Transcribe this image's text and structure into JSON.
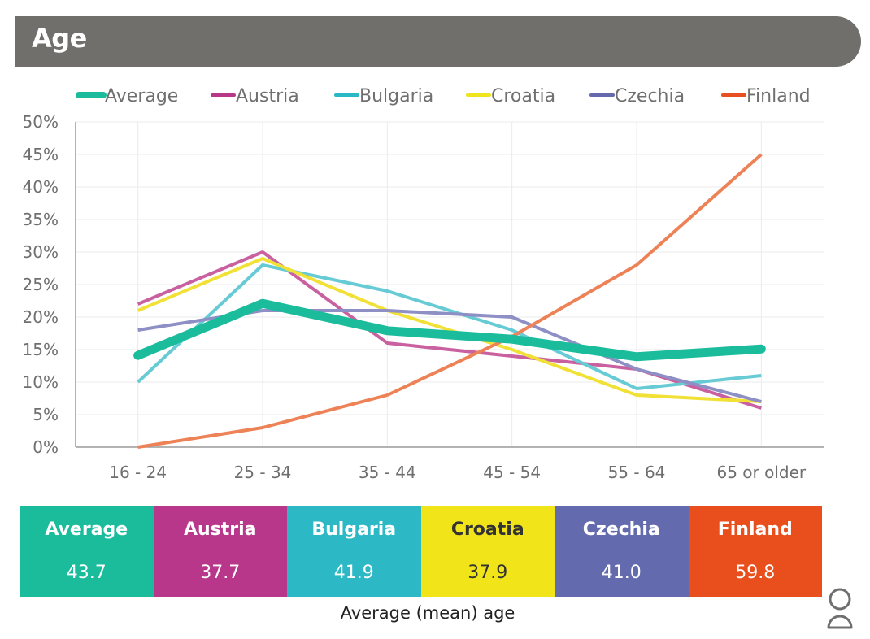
{
  "header": {
    "title": "Age"
  },
  "chart_data": {
    "type": "line",
    "title": "Age",
    "xlabel": "",
    "ylabel": "",
    "categories": [
      "16 - 24",
      "25 - 34",
      "35 - 44",
      "45 - 54",
      "55 - 64",
      "65 or older"
    ],
    "ylim": [
      0,
      50
    ],
    "yticks": [
      "0%",
      "5%",
      "10%",
      "15%",
      "20%",
      "25%",
      "30%",
      "35%",
      "40%",
      "45%",
      "50%"
    ],
    "ytick_values": [
      0,
      5,
      10,
      15,
      20,
      25,
      30,
      35,
      40,
      45,
      50
    ],
    "grid": true,
    "legend_position": "top",
    "series": [
      {
        "name": "Average",
        "color": "#1abc9c",
        "thick": true,
        "values": [
          14.1,
          22.1,
          17.9,
          16.6,
          13.9,
          15.1
        ]
      },
      {
        "name": "Austria",
        "color": "#c9609f",
        "thick": false,
        "values": [
          22,
          30,
          16,
          14,
          12,
          6
        ]
      },
      {
        "name": "Bulgaria",
        "color": "#66cbd4",
        "thick": false,
        "values": [
          10,
          28,
          24,
          18,
          9,
          11
        ]
      },
      {
        "name": "Croatia",
        "color": "#f1e137",
        "thick": false,
        "values": [
          21,
          29,
          21,
          15,
          8,
          7
        ]
      },
      {
        "name": "Czechia",
        "color": "#8e8fc4",
        "thick": false,
        "values": [
          18,
          21,
          21,
          20,
          12,
          7
        ]
      },
      {
        "name": "Finland",
        "color": "#ee8257",
        "thick": false,
        "values": [
          0,
          3,
          8,
          17,
          28,
          45
        ]
      }
    ],
    "legend_colors": [
      "#1abc9c",
      "#b9378b",
      "#2ab8c6",
      "#f0e41e",
      "#6669ae",
      "#e8501f"
    ]
  },
  "stats": {
    "items": [
      {
        "name": "Average",
        "value": "43.7",
        "color": "#1abc9c",
        "dark_text": false
      },
      {
        "name": "Austria",
        "value": "37.7",
        "color": "#b9378b",
        "dark_text": false
      },
      {
        "name": "Bulgaria",
        "value": "41.9",
        "color": "#2db8c5",
        "dark_text": false
      },
      {
        "name": "Croatia",
        "value": "37.9",
        "color": "#f1e419",
        "dark_text": true
      },
      {
        "name": "Czechia",
        "value": "41.0",
        "color": "#646aae",
        "dark_text": false
      },
      {
        "name": "Finland",
        "value": "59.8",
        "color": "#e84f1d",
        "dark_text": false
      }
    ],
    "caption": "Average (mean) age"
  },
  "icons": {
    "person": "person-icon"
  }
}
